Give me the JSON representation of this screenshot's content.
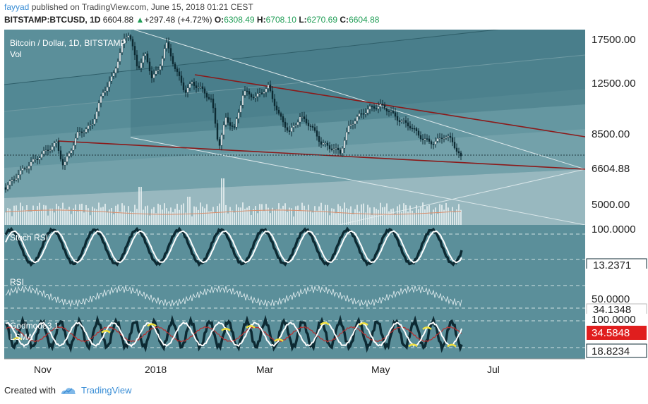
{
  "header": {
    "publisher": "fayyad",
    "published_text": "published on TradingView.com, June 15, 2018 01:21 CEST",
    "symbol": "BITSTAMP:BTCUSD, 1D",
    "last": "6604.88",
    "change_arrow": "▲",
    "change": "+297.48 (+4.72%)",
    "o_label": "O:",
    "o_value": "6308.49",
    "h_label": "H:",
    "h_value": "6708.10",
    "l_label": "L:",
    "l_value": "6270.69",
    "c_label": "C:",
    "c_value": "6604.88"
  },
  "main_pane": {
    "title": "Bitcoin / Dollar, 1D, BITSTAMP",
    "sub": "Vol",
    "price_labels": [
      "17500.00",
      "12500.00",
      "8500.00",
      "5000.00"
    ],
    "current_price": "6604.88"
  },
  "stoch_pane": {
    "title": "Stoch RSI",
    "scale_top": "100.0000",
    "current": "13.2371"
  },
  "rsi_pane": {
    "title": "RSI",
    "scale_mid": "50.0000",
    "current": "34.1348"
  },
  "lsma_pane": {
    "title_line1": "Godmode3.1",
    "title_line2": "LSMA",
    "scale_top": "100.0000",
    "current_red": "34.5848",
    "current_dark": "18.8234"
  },
  "time_axis": [
    "Nov",
    "2018",
    "Mar",
    "May",
    "Jul"
  ],
  "footer": {
    "created_with": "Created with",
    "brand": "TradingView"
  },
  "colors": {
    "pane_bg": "#5b8f9a",
    "accent_blue": "#3a8ed6",
    "up_green": "#1f9d55",
    "trend_red": "#8b1a1a",
    "label_red": "#e01e1e"
  }
}
